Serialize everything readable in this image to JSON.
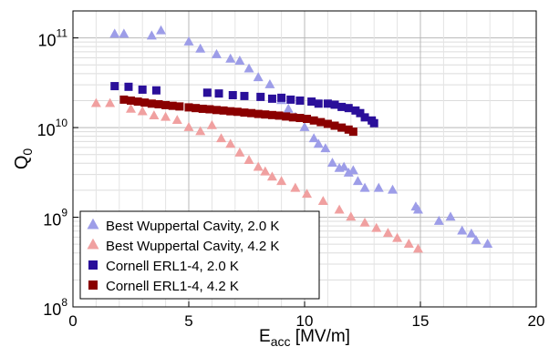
{
  "chart_data": {
    "type": "scatter",
    "title": "",
    "xlabel_main": "E",
    "xlabel_sub": "acc",
    "xlabel_unit": " [MV/m]",
    "ylabel_main": "Q",
    "ylabel_sub": "0",
    "x_scale": "linear",
    "y_scale": "log",
    "xlim": [
      0,
      20
    ],
    "ylim": [
      100000000.0,
      200000000000.0
    ],
    "x_ticks": [
      0,
      5,
      10,
      15,
      20
    ],
    "x_tick_labels": [
      "0",
      "5",
      "10",
      "15",
      "20"
    ],
    "y_ticks": [
      100000000.0,
      1000000000.0,
      10000000000.0,
      100000000000.0
    ],
    "y_tick_labels": [
      {
        "base": "10",
        "exp": "8"
      },
      {
        "base": "10",
        "exp": "9"
      },
      {
        "base": "10",
        "exp": "10"
      },
      {
        "base": "10",
        "exp": "11"
      }
    ],
    "grid": true,
    "legend_position": "bottom-left",
    "series": [
      {
        "name": "Best Wuppertal Cavity, 2.0 K",
        "marker": "triangle",
        "color": "#9d9de8",
        "x": [
          1.8,
          2.2,
          3.4,
          3.8,
          5.0,
          5.5,
          6.2,
          6.8,
          7.2,
          7.6,
          8.0,
          8.5,
          9.0,
          9.3,
          9.6,
          10.0,
          10.4,
          10.6,
          10.9,
          11.2,
          11.5,
          11.7,
          11.9,
          12.1,
          12.3,
          12.6,
          13.2,
          13.8,
          14.8,
          14.9,
          15.8,
          16.3,
          16.8,
          17.2,
          17.4,
          17.9
        ],
        "y": [
          110000000000.0,
          110000000000.0,
          105000000000.0,
          120000000000.0,
          90000000000.0,
          75000000000.0,
          65000000000.0,
          58000000000.0,
          55000000000.0,
          45000000000.0,
          36000000000.0,
          30000000000.0,
          20000000000.0,
          16000000000.0,
          13000000000.0,
          10000000000.0,
          7500000000.0,
          6500000000.0,
          5800000000.0,
          4000000000.0,
          3500000000.0,
          3600000000.0,
          3100000000.0,
          3300000000.0,
          2500000000.0,
          2100000000.0,
          2100000000.0,
          2000000000.0,
          1300000000.0,
          1200000000.0,
          900000000.0,
          1000000000.0,
          700000000.0,
          650000000.0,
          550000000.0,
          500000000.0
        ]
      },
      {
        "name": "Best Wuppertal Cavity, 4.2 K",
        "marker": "triangle",
        "color": "#f0a0a0",
        "x": [
          1.0,
          1.6,
          2.5,
          3.0,
          3.5,
          4.0,
          4.5,
          5.0,
          5.5,
          6.0,
          6.4,
          6.8,
          7.2,
          7.6,
          8.0,
          8.3,
          8.6,
          9.0,
          9.6,
          10.1,
          10.8,
          11.5,
          12.0,
          12.6,
          13.1,
          13.6,
          14.0,
          14.5,
          14.9
        ],
        "y": [
          18500000000.0,
          18500000000.0,
          16000000000.0,
          15000000000.0,
          13500000000.0,
          13000000000.0,
          12000000000.0,
          10000000000.0,
          9000000000.0,
          10500000000.0,
          7500000000.0,
          6500000000.0,
          5200000000.0,
          4300000000.0,
          3600000000.0,
          3200000000.0,
          2800000000.0,
          2500000000.0,
          2100000000.0,
          1800000000.0,
          1500000000.0,
          1200000000.0,
          1000000000.0,
          860000000.0,
          750000000.0,
          660000000.0,
          580000000.0,
          500000000.0,
          440000000.0
        ]
      },
      {
        "name": "Cornell ERL1-4, 2.0 K",
        "marker": "square",
        "color": "#2a0f9a",
        "x": [
          1.8,
          2.4,
          3.0,
          3.6,
          5.8,
          6.3,
          6.9,
          7.4,
          8.1,
          8.6,
          9.0,
          9.4,
          9.8,
          10.3,
          10.6,
          11.0,
          11.3,
          11.6,
          11.9,
          12.2,
          12.4,
          12.6,
          12.9,
          13.0
        ],
        "y": [
          29000000000.0,
          28500000000.0,
          26500000000.0,
          26000000000.0,
          24500000000.0,
          24000000000.0,
          23000000000.0,
          22500000000.0,
          22000000000.0,
          21000000000.0,
          21500000000.0,
          20500000000.0,
          20000000000.0,
          19500000000.0,
          18500000000.0,
          18500000000.0,
          18000000000.0,
          17000000000.0,
          16500000000.0,
          15500000000.0,
          14500000000.0,
          13000000000.0,
          12000000000.0,
          11200000000.0
        ]
      },
      {
        "name": "Cornell ERL1-4, 4.2 K",
        "marker": "square",
        "color": "#8a0000",
        "x": [
          2.2,
          2.5,
          2.8,
          3.1,
          3.4,
          3.7,
          4.0,
          4.3,
          4.6,
          5.0,
          5.3,
          5.6,
          5.9,
          6.2,
          6.5,
          6.8,
          7.1,
          7.4,
          7.7,
          8.0,
          8.3,
          8.6,
          8.9,
          9.2,
          9.5,
          9.8,
          10.1,
          10.4,
          10.7,
          11.0,
          11.3,
          11.6,
          11.9,
          12.1
        ],
        "y": [
          20500000000.0,
          20000000000.0,
          19500000000.0,
          19000000000.0,
          18500000000.0,
          18200000000.0,
          17800000000.0,
          17500000000.0,
          17200000000.0,
          16800000000.0,
          16500000000.0,
          16200000000.0,
          16000000000.0,
          15700000000.0,
          15500000000.0,
          15200000000.0,
          15000000000.0,
          14700000000.0,
          14500000000.0,
          14200000000.0,
          14000000000.0,
          13800000000.0,
          13600000000.0,
          13300000000.0,
          13000000000.0,
          12800000000.0,
          12500000000.0,
          12000000000.0,
          11500000000.0,
          11000000000.0,
          10500000000.0,
          10000000000.0,
          9500000000.0,
          9000000000.0
        ]
      }
    ]
  }
}
